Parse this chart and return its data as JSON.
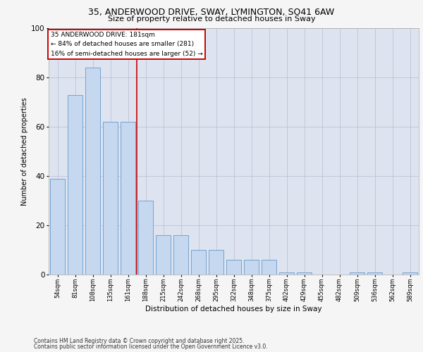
{
  "title_line1": "35, ANDERWOOD DRIVE, SWAY, LYMINGTON, SO41 6AW",
  "title_line2": "Size of property relative to detached houses in Sway",
  "xlabel": "Distribution of detached houses by size in Sway",
  "ylabel": "Number of detached properties",
  "categories": [
    "54sqm",
    "81sqm",
    "108sqm",
    "135sqm",
    "161sqm",
    "188sqm",
    "215sqm",
    "242sqm",
    "268sqm",
    "295sqm",
    "322sqm",
    "348sqm",
    "375sqm",
    "402sqm",
    "429sqm",
    "455sqm",
    "482sqm",
    "509sqm",
    "536sqm",
    "562sqm",
    "589sqm"
  ],
  "values": [
    39,
    73,
    84,
    62,
    62,
    30,
    16,
    16,
    10,
    10,
    6,
    6,
    6,
    1,
    1,
    0,
    0,
    1,
    1,
    0,
    1
  ],
  "bar_color": "#c5d8f0",
  "bar_edge_color": "#6699cc",
  "vline_color": "#cc0000",
  "vline_index": 4.5,
  "annotation_lines": [
    "35 ANDERWOOD DRIVE: 181sqm",
    "← 84% of detached houses are smaller (281)",
    "16% of semi-detached houses are larger (52) →"
  ],
  "annotation_box_color": "#ffffff",
  "annotation_box_edge": "#cc0000",
  "ylim": [
    0,
    100
  ],
  "yticks": [
    0,
    20,
    40,
    60,
    80,
    100
  ],
  "grid_color": "#bbbbcc",
  "bg_color": "#dde4f0",
  "fig_bg_color": "#f5f5f5",
  "footnote1": "Contains HM Land Registry data © Crown copyright and database right 2025.",
  "footnote2": "Contains public sector information licensed under the Open Government Licence v3.0."
}
